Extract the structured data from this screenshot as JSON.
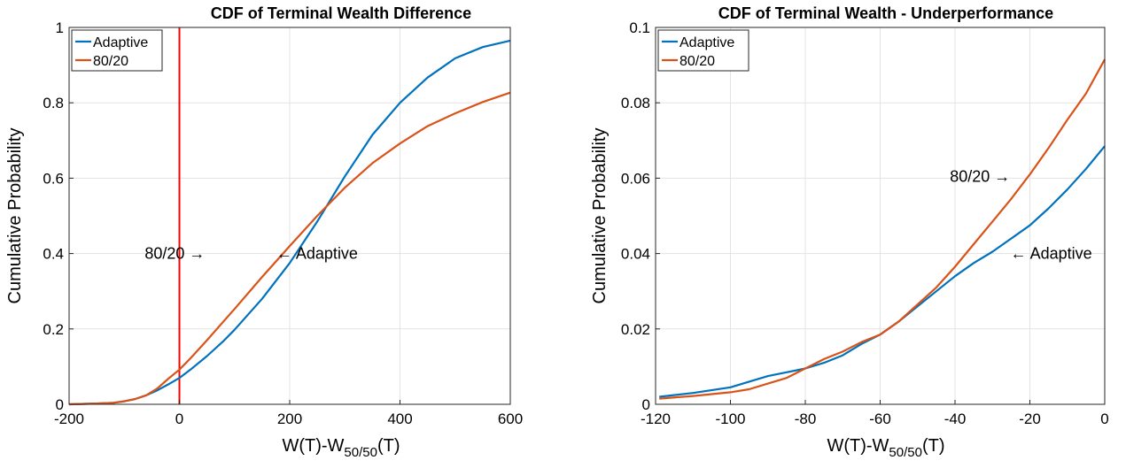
{
  "chart_data": [
    {
      "type": "line",
      "title": "CDF of Terminal Wealth Difference",
      "xlabel": "W(T)-W",
      "xlabel_sub": "50/50",
      "xlabel_suffix": "(T)",
      "ylabel": "Cumulative Probability",
      "xlim": [
        -200,
        600
      ],
      "ylim": [
        0,
        1
      ],
      "xticks": [
        -200,
        0,
        200,
        400,
        600
      ],
      "yticks": [
        0,
        0.2,
        0.4,
        0.6,
        0.8,
        1
      ],
      "xtick_labels": [
        "-200",
        "0",
        "200",
        "400",
        "600"
      ],
      "ytick_labels": [
        "0",
        "0.2",
        "0.4",
        "0.6",
        "0.8",
        "1"
      ],
      "grid": true,
      "legend_position": "top-left",
      "vline": {
        "x": 0,
        "color": "#ff0000"
      },
      "series": [
        {
          "name": "Adaptive",
          "color": "#0072bd",
          "x": [
            -200,
            -150,
            -120,
            -100,
            -80,
            -60,
            -40,
            -20,
            0,
            20,
            50,
            80,
            100,
            150,
            200,
            250,
            300,
            350,
            400,
            450,
            500,
            550,
            600
          ],
          "y": [
            0,
            0.002,
            0.004,
            0.008,
            0.014,
            0.024,
            0.037,
            0.053,
            0.07,
            0.092,
            0.128,
            0.168,
            0.198,
            0.28,
            0.375,
            0.485,
            0.605,
            0.715,
            0.8,
            0.867,
            0.918,
            0.948,
            0.965
          ]
        },
        {
          "name": "80/20",
          "color": "#d95319",
          "x": [
            -200,
            -150,
            -120,
            -100,
            -80,
            -60,
            -40,
            -20,
            0,
            20,
            50,
            80,
            100,
            150,
            200,
            250,
            300,
            350,
            400,
            450,
            500,
            550,
            600
          ],
          "y": [
            0,
            0.002,
            0.004,
            0.008,
            0.014,
            0.024,
            0.042,
            0.068,
            0.092,
            0.122,
            0.17,
            0.22,
            0.253,
            0.338,
            0.42,
            0.5,
            0.575,
            0.64,
            0.692,
            0.738,
            0.772,
            0.802,
            0.827
          ]
        }
      ],
      "annotations": [
        {
          "text": "80/20 →",
          "x": 40,
          "y": 0.4
        },
        {
          "text": "← Adaptive",
          "x": 240,
          "y": 0.4
        }
      ]
    },
    {
      "type": "line",
      "title": "CDF of Terminal Wealth - Underperformance",
      "xlabel": "W(T)-W",
      "xlabel_sub": "50/50",
      "xlabel_suffix": "(T)",
      "ylabel": "Cumulative Probability",
      "xlim": [
        -120,
        0
      ],
      "ylim": [
        0,
        0.1
      ],
      "xticks": [
        -120,
        -100,
        -80,
        -60,
        -40,
        -20,
        0
      ],
      "yticks": [
        0,
        0.02,
        0.04,
        0.06,
        0.08,
        0.1
      ],
      "xtick_labels": [
        "-120",
        "-100",
        "-80",
        "-60",
        "-40",
        "-20",
        "0"
      ],
      "ytick_labels": [
        "0",
        "0.02",
        "0.04",
        "0.06",
        "0.08",
        "0.1"
      ],
      "grid": true,
      "legend_position": "top-left",
      "series": [
        {
          "name": "Adaptive",
          "color": "#0072bd",
          "x": [
            -119,
            -110,
            -100,
            -95,
            -90,
            -85,
            -80,
            -75,
            -70,
            -65,
            -60,
            -55,
            -50,
            -45,
            -40,
            -35,
            -30,
            -25,
            -20,
            -15,
            -10,
            -5,
            0
          ],
          "y": [
            0.002,
            0.003,
            0.0045,
            0.006,
            0.0075,
            0.0085,
            0.0095,
            0.011,
            0.013,
            0.016,
            0.0185,
            0.022,
            0.026,
            0.03,
            0.034,
            0.0375,
            0.0405,
            0.044,
            0.0475,
            0.052,
            0.057,
            0.0625,
            0.0685
          ]
        },
        {
          "name": "80/20",
          "color": "#d95319",
          "x": [
            -119,
            -110,
            -100,
            -95,
            -90,
            -85,
            -80,
            -75,
            -70,
            -65,
            -60,
            -55,
            -50,
            -45,
            -40,
            -35,
            -30,
            -25,
            -20,
            -15,
            -10,
            -5,
            0
          ],
          "y": [
            0.0015,
            0.0022,
            0.0032,
            0.004,
            0.0055,
            0.007,
            0.0095,
            0.012,
            0.014,
            0.0165,
            0.0185,
            0.022,
            0.0265,
            0.031,
            0.0365,
            0.0425,
            0.0485,
            0.0545,
            0.061,
            0.068,
            0.0755,
            0.0825,
            0.0915
          ]
        }
      ],
      "annotations": [
        {
          "text": "80/20 →",
          "x": -30,
          "y": 0.0605
        },
        {
          "text": "← Adaptive",
          "x": -24,
          "y": 0.04
        }
      ]
    }
  ]
}
